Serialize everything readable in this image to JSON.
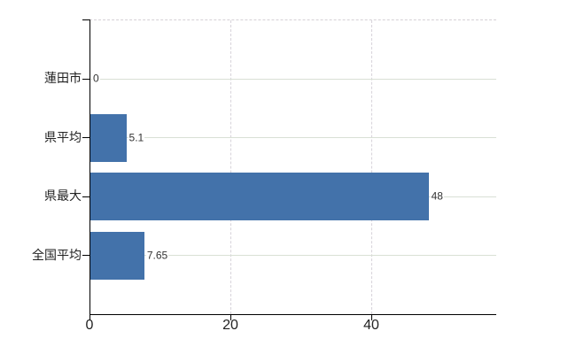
{
  "chart_data": {
    "type": "bar",
    "orientation": "horizontal",
    "title": "",
    "categories": [
      "蓮田市",
      "県平均",
      "県最大",
      "全国平均"
    ],
    "values": [
      0,
      5.1,
      48,
      7.65
    ],
    "value_labels": [
      "0",
      "5.1",
      "48",
      "7.65"
    ],
    "x_ticks": [
      0,
      20,
      40
    ],
    "x_tick_labels": [
      "0",
      "20",
      "40"
    ],
    "xlim": [
      0,
      57.6
    ],
    "ylabel": "",
    "xlabel": "",
    "legend": "none",
    "grid": {
      "horizontal": true,
      "vertical": true
    },
    "colors": {
      "bar": "#4372aa",
      "h_gridline": "#d9e0d5",
      "v_gridline": "#d7d3da",
      "plot_top_border": "#d5d1d6",
      "axis": "#000000",
      "text": "#222222"
    }
  }
}
